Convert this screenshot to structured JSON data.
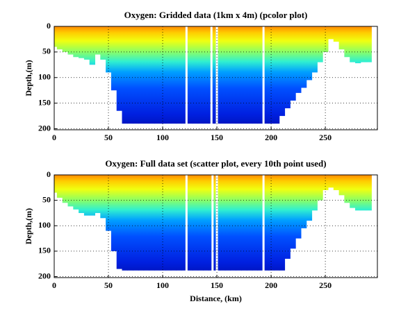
{
  "chart_data": [
    {
      "type": "pcolor",
      "title": "Oxygen: Gridded data (1km x 4m) (pcolor plot)",
      "ylabel": "Depth,(m)",
      "x": [
        0,
        5,
        10,
        15,
        20,
        25,
        30,
        35,
        40,
        45,
        50,
        55,
        60,
        65,
        70,
        75,
        80,
        85,
        90,
        95,
        100,
        105,
        110,
        115,
        120,
        125,
        130,
        135,
        140,
        145,
        150,
        155,
        160,
        165,
        170,
        175,
        180,
        185,
        190,
        195,
        200,
        205,
        210,
        215,
        220,
        225,
        230,
        235,
        240,
        245,
        250,
        255,
        260,
        265,
        270,
        275,
        280,
        285,
        290
      ],
      "values": [
        40,
        45,
        50,
        55,
        60,
        62,
        65,
        75,
        55,
        65,
        90,
        125,
        165,
        190,
        190,
        190,
        190,
        190,
        190,
        190,
        190,
        190,
        190,
        190,
        190,
        190,
        190,
        190,
        190,
        190,
        190,
        190,
        190,
        190,
        190,
        190,
        190,
        190,
        190,
        190,
        190,
        190,
        175,
        160,
        145,
        130,
        120,
        105,
        90,
        70,
        50,
        25,
        30,
        45,
        60,
        70,
        72,
        70,
        70
      ],
      "gaps_x": [
        122,
        145,
        150,
        193
      ],
      "xlim": [
        0,
        298
      ],
      "ylim": [
        0,
        202
      ],
      "xticks": [
        0,
        50,
        100,
        150,
        200,
        250
      ],
      "yticks": [
        0,
        50,
        100,
        150,
        200
      ],
      "grid": true
    },
    {
      "type": "pcolor",
      "title": "Oxygen: Full data set (scatter plot, every 10th point used)",
      "ylabel": "Depth,(m)",
      "xlabel": "Distance, (km)",
      "x": [
        0,
        5,
        10,
        15,
        20,
        25,
        30,
        35,
        40,
        45,
        50,
        55,
        60,
        65,
        70,
        75,
        80,
        85,
        90,
        95,
        100,
        105,
        110,
        115,
        120,
        125,
        130,
        135,
        140,
        145,
        150,
        155,
        160,
        165,
        170,
        175,
        180,
        185,
        190,
        195,
        200,
        205,
        210,
        215,
        220,
        225,
        230,
        235,
        240,
        245,
        250,
        255,
        260,
        265,
        270,
        275,
        280,
        285,
        290
      ],
      "values": [
        35,
        45,
        55,
        62,
        68,
        75,
        80,
        80,
        75,
        85,
        110,
        150,
        185,
        188,
        188,
        188,
        188,
        188,
        188,
        188,
        188,
        188,
        188,
        188,
        188,
        188,
        188,
        188,
        188,
        188,
        188,
        188,
        188,
        188,
        188,
        188,
        188,
        188,
        188,
        188,
        188,
        188,
        188,
        165,
        145,
        125,
        105,
        90,
        70,
        50,
        30,
        25,
        30,
        40,
        55,
        65,
        70,
        70,
        70
      ],
      "gaps_x": [
        122,
        146,
        150,
        193
      ],
      "xlim": [
        0,
        298
      ],
      "ylim": [
        0,
        202
      ],
      "xticks": [
        0,
        50,
        100,
        150,
        200,
        250
      ],
      "yticks": [
        0,
        50,
        100,
        150,
        200
      ],
      "grid": true
    }
  ]
}
